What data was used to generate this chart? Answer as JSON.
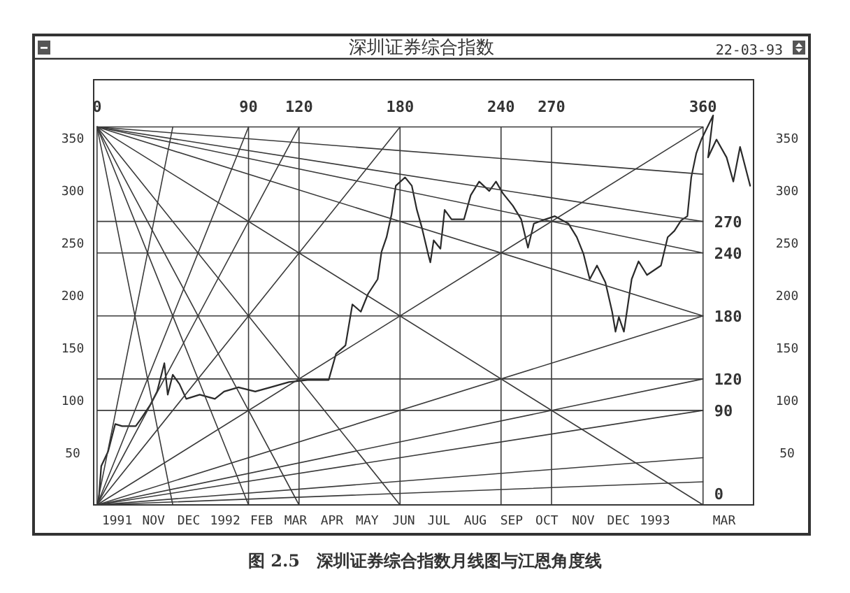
{
  "chart_data": {
    "type": "line",
    "title": "深圳证券综合指数",
    "annotations": [
      "22-03-93",
      "图 2.5　深圳证券综合指数月线图与江恩角度线"
    ],
    "xlim": [
      -2,
      390
    ],
    "xticks": [
      0,
      90,
      120,
      180,
      240,
      270,
      360
    ],
    "x2lim": [
      "1991-09-11",
      "1993-03-26"
    ],
    "x2ticks": [
      {
        "value": "1991-10-01",
        "label": "1991"
      },
      {
        "value": "1991-11-01",
        "label": "NOV"
      },
      {
        "value": "1991-12-01",
        "label": "DEC"
      },
      {
        "value": "1992-01-01",
        "label": "1992"
      },
      {
        "value": "1992-02-01",
        "label": "FEB"
      },
      {
        "value": "1992-03-01",
        "label": "MAR"
      },
      {
        "value": "1992-04-01",
        "label": "APR"
      },
      {
        "value": "1992-05-01",
        "label": "MAY"
      },
      {
        "value": "1992-06-01",
        "label": "JUN"
      },
      {
        "value": "1992-07-01",
        "label": "JUL"
      },
      {
        "value": "1992-08-01",
        "label": "AUG"
      },
      {
        "value": "1992-09-01",
        "label": "SEP"
      },
      {
        "value": "1992-10-01",
        "label": "OCT"
      },
      {
        "value": "1992-11-01",
        "label": "NOV"
      },
      {
        "value": "1992-12-01",
        "label": "DEC"
      },
      {
        "value": "1993-01-01",
        "label": "1993"
      },
      {
        "value": "1993-03-01",
        "label": "MAR"
      }
    ],
    "y3lim": [
      0,
      405
    ],
    "y3ticks": [
      0,
      90,
      120,
      180,
      240,
      270,
      {
        "value": 360,
        "label": null
      }
    ],
    "grid": true,
    "ylim": [
      0,
      405
    ],
    "yticks": [
      50,
      100,
      150,
      200,
      250,
      300,
      350
    ],
    "y2lim": [
      0,
      405
    ],
    "y2ticks": [
      50,
      100,
      150,
      200,
      250,
      300,
      350
    ],
    "series": [
      {
        "color": "#2a2a2a",
        "x": [
          1,
          2.5,
          6.6,
          10.8,
          14.9,
          23,
          25.7,
          31.5,
          35.7,
          40,
          42,
          45,
          49,
          53,
          61,
          70,
          75.5,
          84,
          94,
          103,
          114,
          125,
          137.6,
          142,
          147.6,
          151.7,
          156.7,
          161,
          166.7,
          169,
          172,
          175,
          177.5,
          183,
          187,
          190,
          193,
          197,
          198,
          200,
          204,
          206.5,
          210.6,
          218,
          222,
          227,
          233,
          237,
          241,
          247,
          252,
          256,
          259.5,
          264.5,
          272,
          280,
          285,
          289,
          292.7,
          297,
          302,
          306,
          308,
          310,
          313,
          317.6,
          321.7,
          326.7,
          335,
          339,
          343,
          347,
          350.7,
          353,
          356,
          359,
          366,
          363,
          368,
          374,
          378,
          382,
          388
        ],
        "values": [
          5,
          37,
          51,
          77,
          75,
          75,
          81,
          95,
          108,
          135,
          105,
          124,
          115,
          101,
          105,
          101,
          108,
          112,
          108,
          112,
          117,
          119,
          119,
          144,
          152,
          191,
          184,
          201,
          215,
          241,
          255,
          277,
          304,
          312,
          304,
          281,
          264,
          237,
          231,
          252,
          244,
          281,
          272,
          272,
          295,
          308,
          299,
          308,
          297,
          285,
          272,
          245,
          268,
          271,
          275,
          268,
          255,
          239,
          215,
          228,
          212,
          184,
          165,
          179,
          165,
          215,
          232,
          219,
          228,
          255,
          261,
          271,
          275,
          312,
          335,
          348,
          371,
          331,
          348,
          331,
          308,
          341,
          304
        ]
      },
      {
        "color": "#3a3a3a",
        "x": [
          0,
          360
        ],
        "values": [
          0,
          360
        ]
      },
      {
        "color": "#3a3a3a",
        "x": [
          0,
          360
        ],
        "values": [
          0,
          180
        ]
      },
      {
        "color": "#3a3a3a",
        "x": [
          0,
          360
        ],
        "values": [
          0,
          120
        ]
      },
      {
        "color": "#3a3a3a",
        "x": [
          0,
          360
        ],
        "values": [
          0,
          90
        ]
      },
      {
        "color": "#3a3a3a",
        "x": [
          0,
          360
        ],
        "values": [
          0,
          45
        ]
      },
      {
        "color": "#3a3a3a",
        "x": [
          0,
          360
        ],
        "values": [
          0,
          22
        ]
      },
      {
        "color": "#3a3a3a",
        "x": [
          0,
          45
        ],
        "values": [
          0,
          360
        ]
      },
      {
        "color": "#3a3a3a",
        "x": [
          0,
          90
        ],
        "values": [
          0,
          360
        ]
      },
      {
        "color": "#3a3a3a",
        "x": [
          0,
          120
        ],
        "values": [
          0,
          360
        ]
      },
      {
        "color": "#3a3a3a",
        "x": [
          0,
          180
        ],
        "values": [
          0,
          360
        ]
      },
      {
        "color": "#3a3a3a",
        "x": [
          0,
          360
        ],
        "values": [
          360,
          315
        ]
      },
      {
        "color": "#3a3a3a",
        "x": [
          0,
          360
        ],
        "values": [
          360,
          270
        ]
      },
      {
        "color": "#3a3a3a",
        "x": [
          0,
          360
        ],
        "values": [
          360,
          240
        ]
      },
      {
        "color": "#3a3a3a",
        "x": [
          0,
          360
        ],
        "values": [
          360,
          180
        ]
      },
      {
        "color": "#3a3a3a",
        "x": [
          0,
          360
        ],
        "values": [
          360,
          0
        ]
      },
      {
        "color": "#3a3a3a",
        "x": [
          0,
          180
        ],
        "values": [
          360,
          0
        ]
      },
      {
        "color": "#3a3a3a",
        "x": [
          0,
          120
        ],
        "values": [
          360,
          0
        ]
      },
      {
        "color": "#3a3a3a",
        "x": [
          0,
          90
        ],
        "values": [
          360,
          0
        ]
      },
      {
        "color": "#3a3a3a",
        "x": [
          0,
          45
        ],
        "values": [
          360,
          0
        ]
      }
    ]
  }
}
